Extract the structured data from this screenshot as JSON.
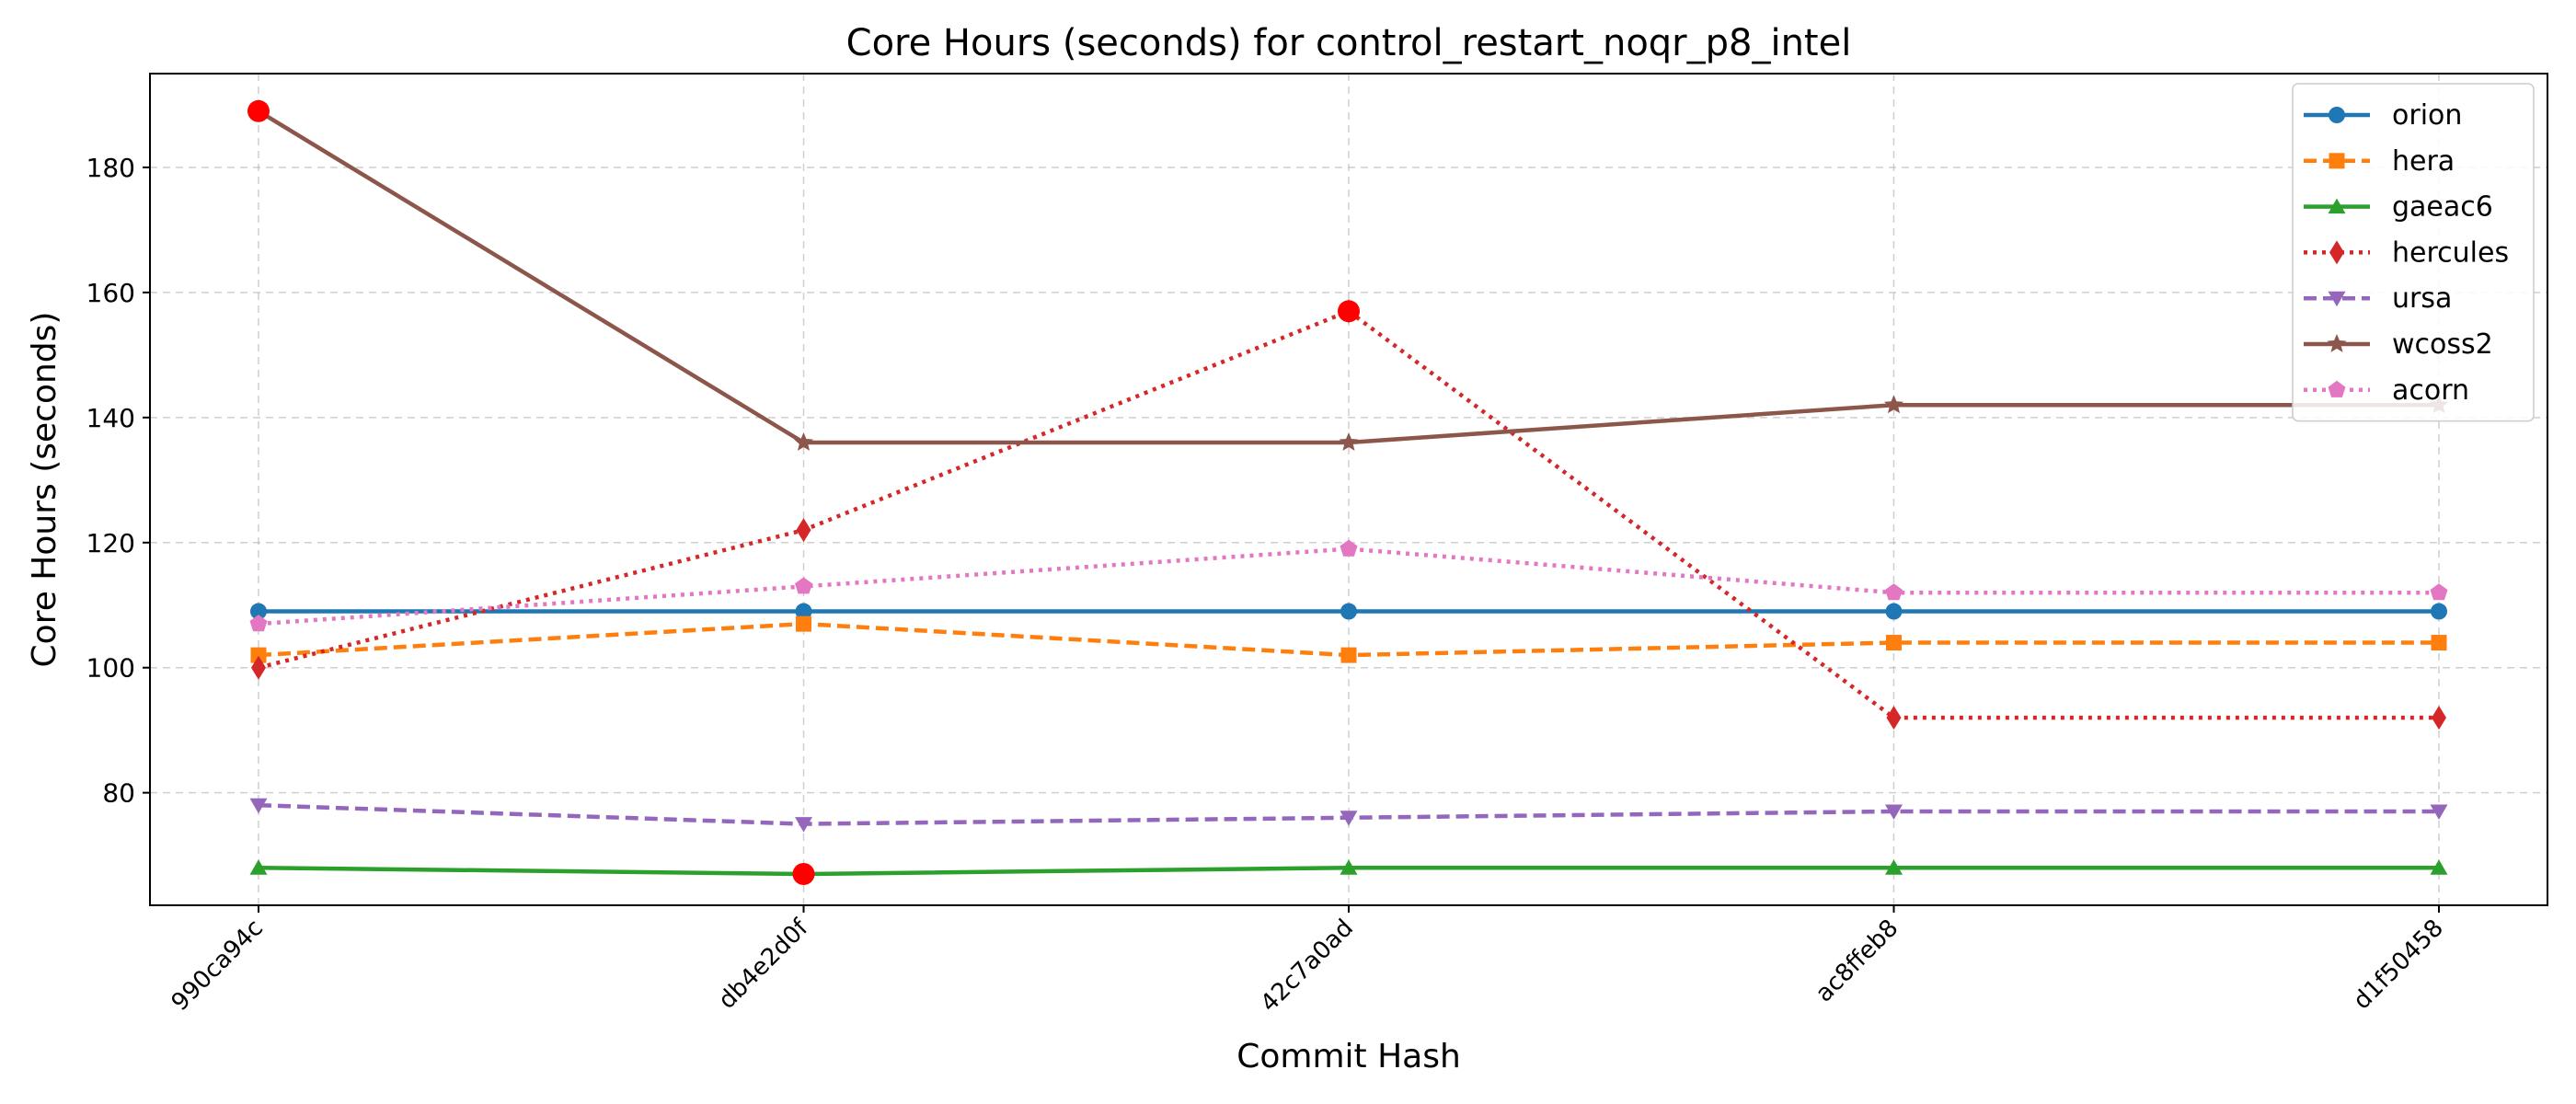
{
  "chart_data": {
    "type": "line",
    "title": "Core Hours (seconds) for control_restart_noqr_p8_intel",
    "xlabel": "Commit Hash",
    "ylabel": "Core Hours (seconds)",
    "categories": [
      "990ca94c",
      "db4e2d0f",
      "42c7a0ad",
      "ac8ffeb8",
      "d1f50458"
    ],
    "ylim": [
      62,
      195
    ],
    "yticks": [
      80,
      100,
      120,
      140,
      160,
      180
    ],
    "grid": true,
    "legend_position": "top-right",
    "series": [
      {
        "name": "orion",
        "values": [
          109,
          109,
          109,
          109,
          109
        ],
        "color": "#1f77b4",
        "dash": "solid",
        "marker": "circle"
      },
      {
        "name": "hera",
        "values": [
          102,
          107,
          102,
          104,
          104
        ],
        "color": "#ff7f0e",
        "dash": "dashed",
        "marker": "square"
      },
      {
        "name": "gaeac6",
        "values": [
          68,
          67,
          68,
          68,
          68
        ],
        "color": "#2ca02c",
        "dash": "solid",
        "marker": "triangle-up"
      },
      {
        "name": "hercules",
        "values": [
          100,
          122,
          157,
          92,
          92
        ],
        "color": "#d62728",
        "dash": "dotted",
        "marker": "diamond"
      },
      {
        "name": "ursa",
        "values": [
          78,
          75,
          76,
          77,
          77
        ],
        "color": "#9467bd",
        "dash": "dashed",
        "marker": "triangle-down"
      },
      {
        "name": "wcoss2",
        "values": [
          189,
          136,
          136,
          142,
          142
        ],
        "color": "#8c564b",
        "dash": "solid",
        "marker": "star"
      },
      {
        "name": "acorn",
        "values": [
          107,
          113,
          119,
          112,
          112
        ],
        "color": "#e377c2",
        "dash": "dotted",
        "marker": "pentagon"
      }
    ],
    "highlights": [
      {
        "series": "wcoss2",
        "category": "990ca94c",
        "value": 189
      },
      {
        "series": "hercules",
        "category": "42c7a0ad",
        "value": 157
      },
      {
        "series": "gaeac6",
        "category": "db4e2d0f",
        "value": 67
      }
    ],
    "highlight_color": "#ff0000"
  }
}
